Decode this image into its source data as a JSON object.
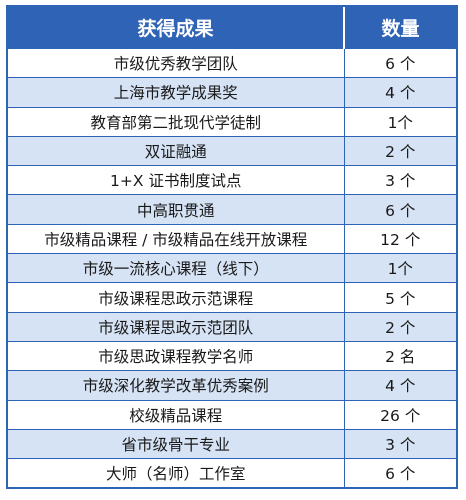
{
  "header": {
    "achievement_label": "获得成果",
    "count_label": "数量"
  },
  "rows": [
    {
      "achievement": "市级优秀教学团队",
      "count": "6 个"
    },
    {
      "achievement": "上海市教学成果奖",
      "count": "4 个"
    },
    {
      "achievement": "教育部第二批现代学徒制",
      "count": "1个"
    },
    {
      "achievement": "双证融通",
      "count": "2 个"
    },
    {
      "achievement": "1+X 证书制度试点",
      "count": "3 个"
    },
    {
      "achievement": "中高职贯通",
      "count": "6 个"
    },
    {
      "achievement": "市级精品课程 / 市级精品在线开放课程",
      "count": "12 个"
    },
    {
      "achievement": "市级一流核心课程（线下）",
      "count": "1个"
    },
    {
      "achievement": "市级课程思政示范课程",
      "count": "5 个"
    },
    {
      "achievement": "市级课程思政示范团队",
      "count": "2 个"
    },
    {
      "achievement": "市级思政课程教学名师",
      "count": "2 名"
    },
    {
      "achievement": "市级深化教学改革优秀案例",
      "count": "4 个"
    },
    {
      "achievement": "校级精品课程",
      "count": "26 个"
    },
    {
      "achievement": "省市级骨干专业",
      "count": "3 个"
    },
    {
      "achievement": "大师（名师）工作室",
      "count": "6 个"
    }
  ],
  "colors": {
    "header_bg": "#2f63b5",
    "stripe_bg": "#d6e3f5"
  }
}
